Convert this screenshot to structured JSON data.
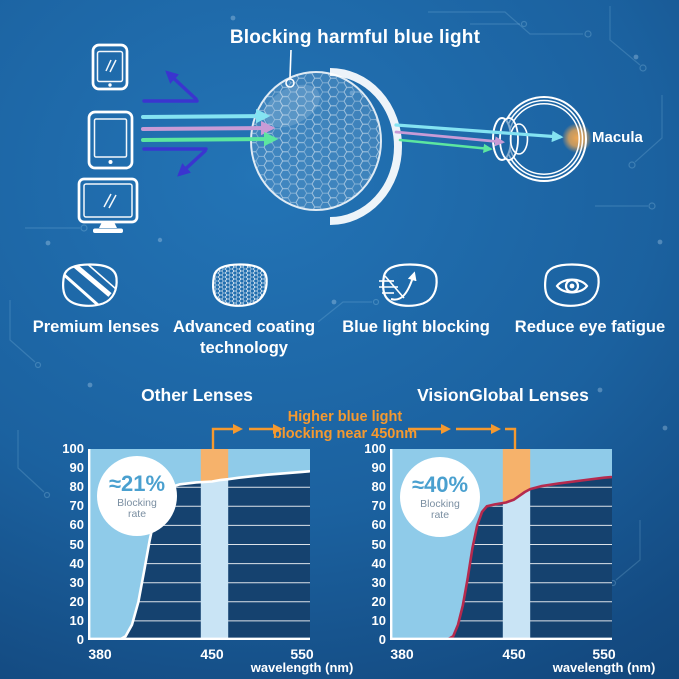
{
  "header": {
    "title": "Blocking harmful blue light",
    "macula_label": "Macula"
  },
  "features": [
    {
      "label": "Premium lenses",
      "icon": "lens-shine-icon"
    },
    {
      "label": "Advanced coating technology",
      "icon": "lens-coating-icon"
    },
    {
      "label": "Blue light blocking",
      "icon": "lens-block-icon"
    },
    {
      "label": "Reduce eye fatigue",
      "icon": "lens-eye-icon"
    }
  ],
  "comparison": {
    "annotation_line1": "Higher blue light",
    "annotation_line2": "blocking near 450nm"
  },
  "chart_data": [
    {
      "type": "area",
      "title": "Other Lenses",
      "xlabel": "wavelength (nm)",
      "x_ticks": [
        380,
        450,
        550
      ],
      "y_ticks": [
        0,
        10,
        20,
        30,
        40,
        50,
        60,
        70,
        80,
        90,
        100
      ],
      "ylim": [
        0,
        100
      ],
      "xlim": [
        380,
        560
      ],
      "grid": "horizontal",
      "legend": "none",
      "highlight_band_nm": [
        443,
        468
      ],
      "blocking_rate_label": "≈21%",
      "blocking_rate_sublabel": "Blocking rate",
      "series": [
        {
          "name": "blocked-light boundary curve",
          "points": [
            [
              380,
              0
            ],
            [
              392,
              0
            ],
            [
              396,
              2
            ],
            [
              400,
              8
            ],
            [
              404,
              20
            ],
            [
              408,
              38
            ],
            [
              411,
              52
            ],
            [
              414,
              64
            ],
            [
              417,
              72
            ],
            [
              420,
              77
            ],
            [
              424,
              80
            ],
            [
              430,
              81.5
            ],
            [
              440,
              82.5
            ],
            [
              450,
              83
            ],
            [
              460,
              83.8
            ],
            [
              468,
              84.2
            ],
            [
              480,
              85
            ],
            [
              510,
              86.5
            ],
            [
              550,
              88
            ],
            [
              558,
              88.3
            ]
          ]
        }
      ]
    },
    {
      "type": "area",
      "title": "VisionGlobal Lenses",
      "xlabel": "wavelength (nm)",
      "x_ticks": [
        380,
        450,
        550
      ],
      "y_ticks": [
        0,
        10,
        20,
        30,
        40,
        50,
        60,
        70,
        80,
        90,
        100
      ],
      "ylim": [
        0,
        100
      ],
      "xlim": [
        380,
        560
      ],
      "grid": "horizontal",
      "legend": "none",
      "highlight_band_nm": [
        443,
        468
      ],
      "blocking_rate_label": "≈40%",
      "blocking_rate_sublabel": "Blocking rate",
      "series": [
        {
          "name": "blocked-light boundary curve",
          "points": [
            [
              380,
              0
            ],
            [
              408,
              0
            ],
            [
              412,
              2
            ],
            [
              415,
              8
            ],
            [
              418,
              18
            ],
            [
              421,
              32
            ],
            [
              424,
              48
            ],
            [
              427,
              60
            ],
            [
              430,
              67
            ],
            [
              433,
              70
            ],
            [
              438,
              71
            ],
            [
              445,
              72
            ],
            [
              450,
              73.5
            ],
            [
              456,
              75.5
            ],
            [
              462,
              77.5
            ],
            [
              468,
              79
            ],
            [
              480,
              80.5
            ],
            [
              500,
              82
            ],
            [
              525,
              83.5
            ],
            [
              550,
              85
            ],
            [
              558,
              85.3
            ]
          ]
        }
      ]
    }
  ],
  "colors": {
    "accent_orange": "#f5992f",
    "band_orange": "#f6b26b",
    "fill_blue": "#8fcbe9",
    "band_blue": "#c9e4f5",
    "plot_bg": "#15426f",
    "curve_left": "#ffffff",
    "curve_right": "#b52a4e",
    "badge_value": "#4aa0cf",
    "badge_label": "#7b8fa2",
    "ray_cyan": "#84e3f2",
    "ray_pink": "#c89bd6",
    "ray_green": "#5ce6a0",
    "ray_blue": "#3a35cf",
    "macula_glow": "#f6a94e"
  }
}
